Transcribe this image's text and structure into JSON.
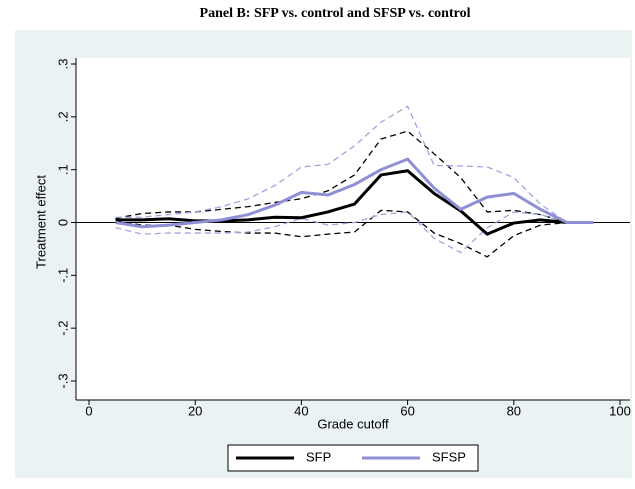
{
  "chart_data": {
    "type": "line",
    "title": "Panel B: SFP vs. control and SFSP vs. control",
    "x_label": "Grade cutoff",
    "y_label": "Treatment effect",
    "x": [
      5,
      10,
      15,
      20,
      25,
      30,
      35,
      40,
      45,
      50,
      55,
      60,
      65,
      70,
      75,
      80,
      85,
      90,
      95
    ],
    "series": [
      {
        "color": "#000000",
        "line_style": "dashed",
        "values": [
          0.008,
          0.017,
          0.02,
          0.02,
          0.025,
          0.03,
          0.038,
          0.045,
          0.06,
          0.09,
          0.158,
          0.173,
          0.13,
          0.085,
          0.02,
          0.023,
          0.015,
          0,
          0
        ]
      },
      {
        "color": "#000000",
        "line_style": "dashed",
        "values": [
          0.003,
          -0.005,
          -0.005,
          -0.013,
          -0.017,
          -0.02,
          -0.02,
          -0.027,
          -0.022,
          -0.018,
          0.023,
          0.02,
          -0.02,
          -0.04,
          -0.065,
          -0.025,
          -0.005,
          0,
          0
        ]
      },
      {
        "color": "#a3a3e0",
        "line_style": "dashed",
        "values": [
          0.01,
          0.01,
          0.015,
          0.02,
          0.03,
          0.045,
          0.07,
          0.105,
          0.11,
          0.145,
          0.19,
          0.22,
          0.108,
          0.107,
          0.105,
          0.085,
          0.035,
          0,
          0
        ]
      },
      {
        "color": "#a3a3e0",
        "line_style": "dashed",
        "values": [
          -0.01,
          -0.022,
          -0.02,
          -0.02,
          -0.02,
          -0.018,
          -0.008,
          0.008,
          -0.005,
          0,
          0.015,
          0.02,
          -0.03,
          -0.057,
          -0.01,
          0.02,
          0.015,
          0,
          0
        ]
      },
      {
        "name": "SFP",
        "color": "#000000",
        "line_style": "solid",
        "values": [
          0.005,
          0.005,
          0.007,
          0.003,
          0.003,
          0.005,
          0.01,
          0.009,
          0.02,
          0.035,
          0.09,
          0.098,
          0.055,
          0.022,
          -0.022,
          -0.001,
          0.005,
          0,
          0
        ]
      },
      {
        "name": "SFSP",
        "color": "#8f8fd6",
        "line_style": "solid",
        "values": [
          0,
          -0.008,
          -0.005,
          0,
          0.005,
          0.015,
          0.033,
          0.057,
          0.052,
          0.072,
          0.1,
          0.12,
          0.065,
          0.025,
          0.048,
          0.055,
          0.025,
          0,
          0
        ]
      }
    ],
    "xlim": [
      0,
      100
    ],
    "xticks": [
      0,
      20,
      40,
      60,
      80,
      100
    ],
    "ylim": [
      -0.3,
      0.3
    ],
    "yticks": [
      {
        "value": -0.3,
        "label": "-.3"
      },
      {
        "value": -0.2,
        "label": "-.2"
      },
      {
        "value": -0.1,
        "label": "-.1"
      },
      0,
      {
        "value": 0.1,
        "label": ".1"
      },
      {
        "value": 0.2,
        "label": ".2"
      },
      {
        "value": 0.3,
        "label": ".3"
      }
    ],
    "zero_line": true,
    "legend": "bottom"
  }
}
